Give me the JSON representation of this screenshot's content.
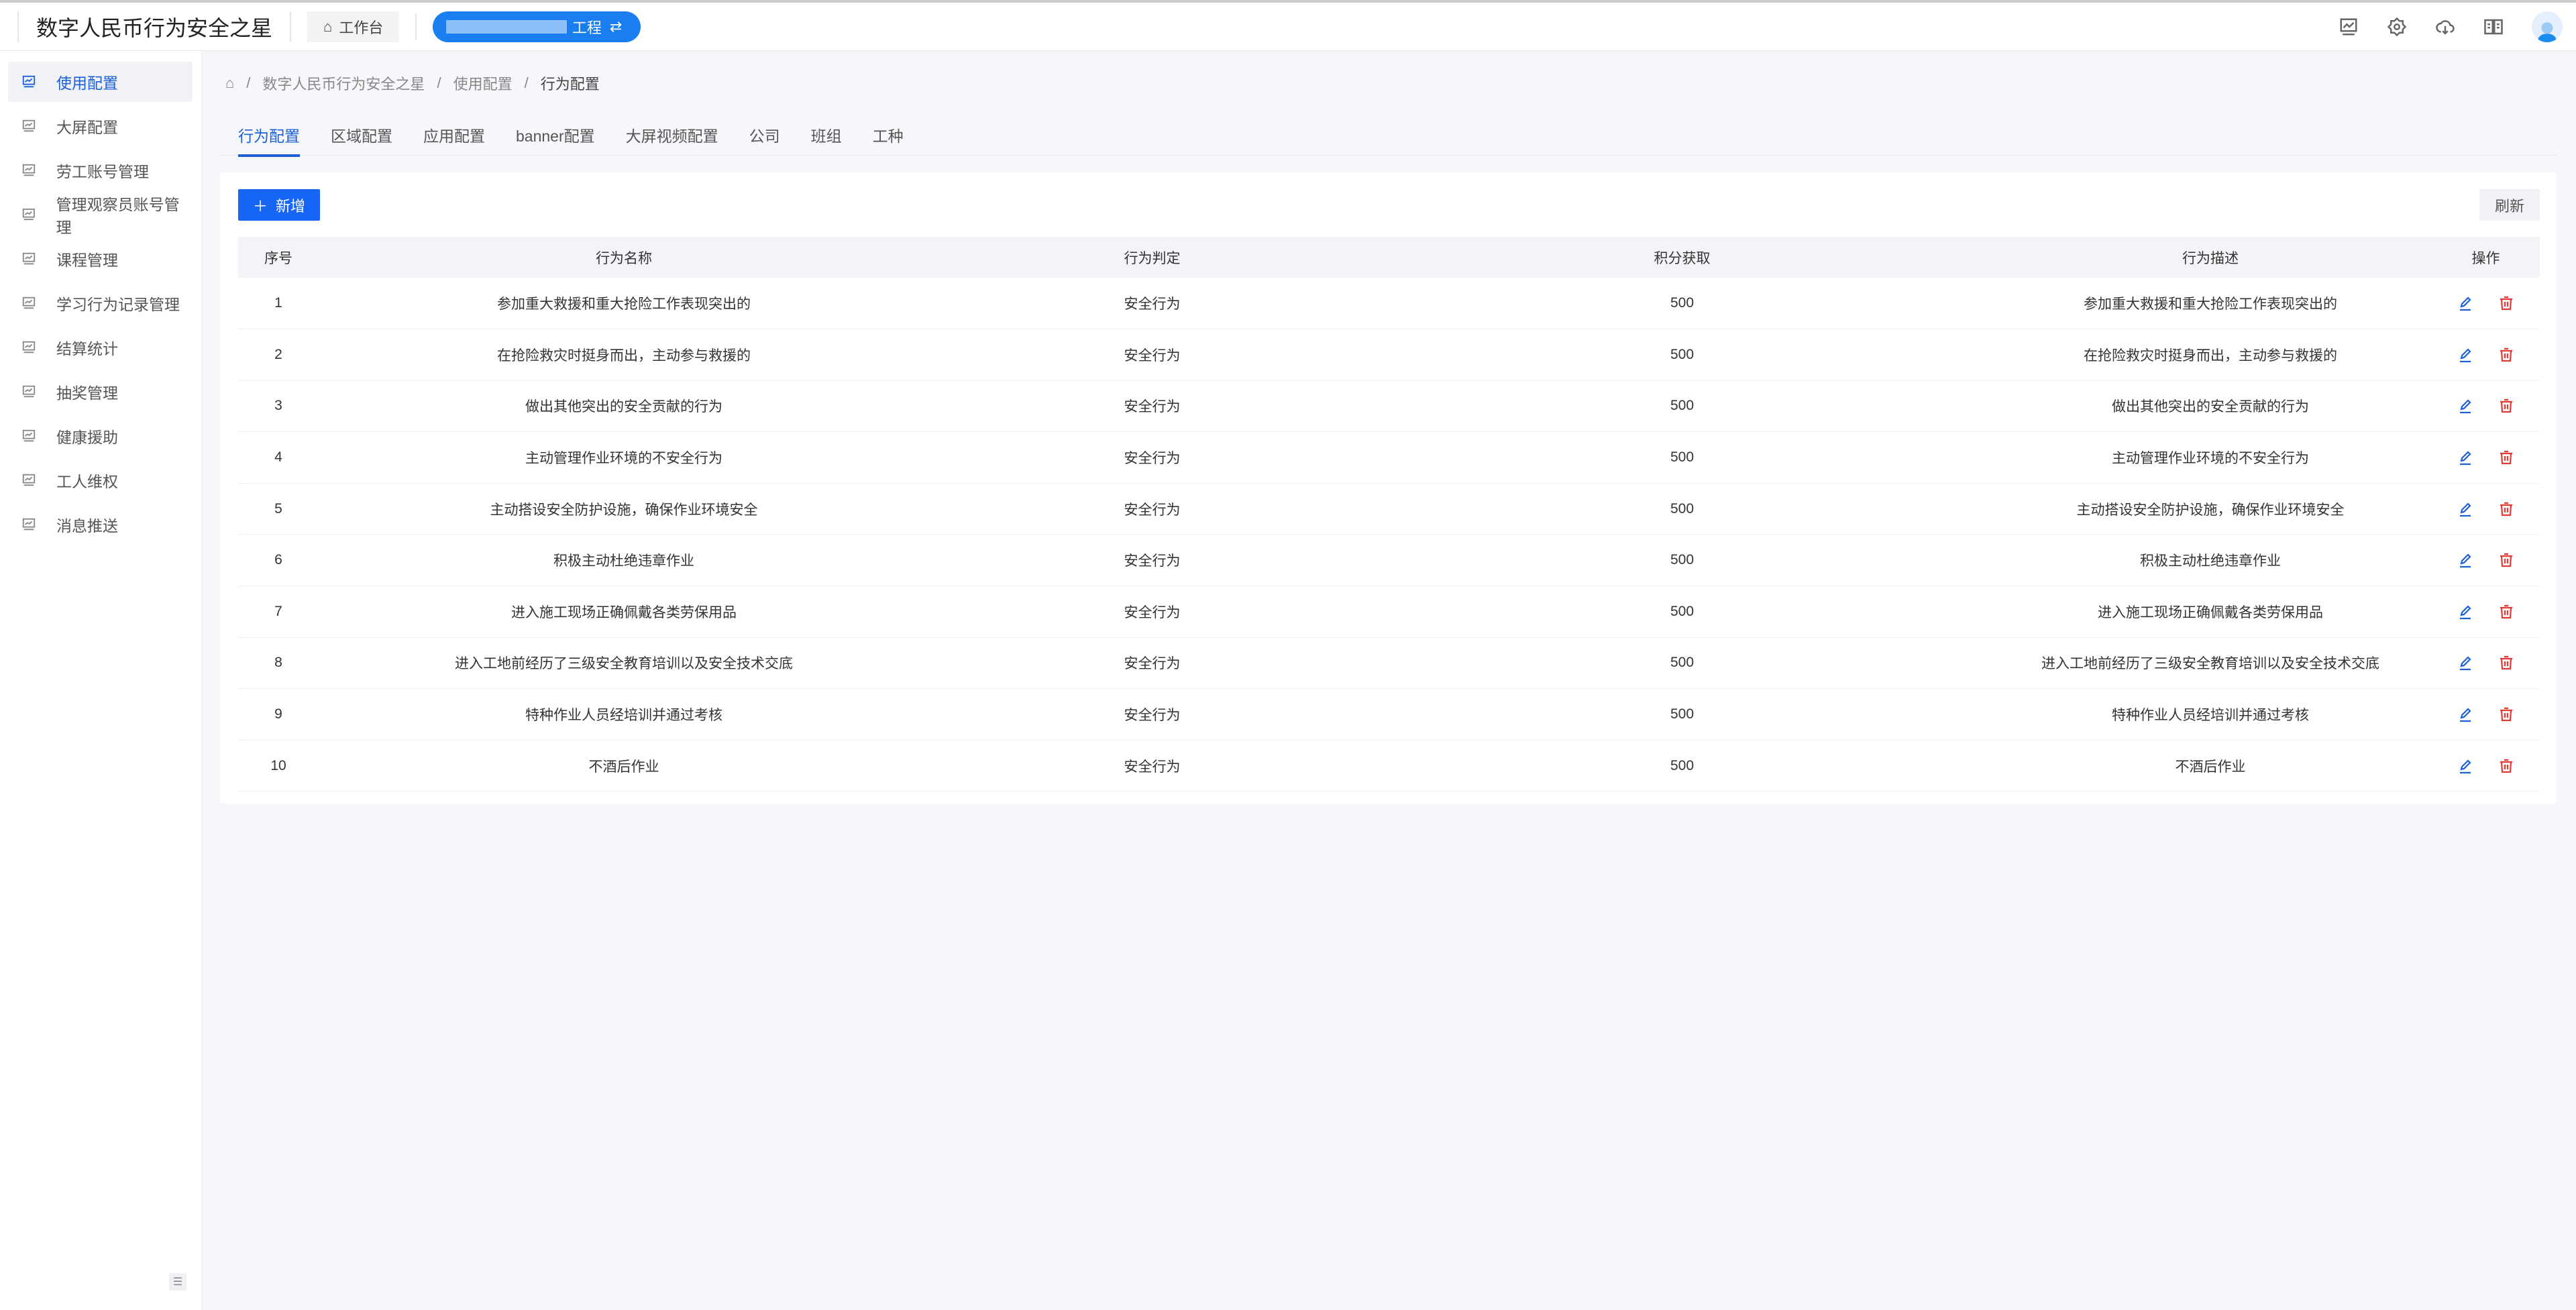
{
  "header": {
    "title": "数字人民币行为安全之星",
    "workbench": "工作台",
    "project": "工程",
    "switch_icon": "swap-icon",
    "icons": [
      "monitor-chart-icon",
      "gear-icon",
      "cloud-download-icon",
      "book-icon",
      "avatar"
    ]
  },
  "sidebar": {
    "items": [
      {
        "label": "使用配置",
        "active": true
      },
      {
        "label": "大屏配置"
      },
      {
        "label": "劳工账号管理"
      },
      {
        "label": "管理观察员账号管理"
      },
      {
        "label": "课程管理"
      },
      {
        "label": "学习行为记录管理"
      },
      {
        "label": "结算统计"
      },
      {
        "label": "抽奖管理"
      },
      {
        "label": "健康援助"
      },
      {
        "label": "工人维权"
      },
      {
        "label": "消息推送"
      }
    ]
  },
  "breadcrumb": [
    "数字人民币行为安全之星",
    "使用配置",
    "行为配置"
  ],
  "tabs": [
    "行为配置",
    "区域配置",
    "应用配置",
    "banner配置",
    "大屏视频配置",
    "公司",
    "班组",
    "工种"
  ],
  "toolbar": {
    "add": "新增",
    "refresh": "刷新"
  },
  "table": {
    "headers": [
      "序号",
      "行为名称",
      "行为判定",
      "积分获取",
      "行为描述",
      "操作"
    ],
    "rows": [
      [
        "1",
        "参加重大救援和重大抢险工作表现突出的",
        "安全行为",
        "500",
        "参加重大救援和重大抢险工作表现突出的"
      ],
      [
        "2",
        "在抢险救灾时挺身而出，主动参与救援的",
        "安全行为",
        "500",
        "在抢险救灾时挺身而出，主动参与救援的"
      ],
      [
        "3",
        "做出其他突出的安全贡献的行为",
        "安全行为",
        "500",
        "做出其他突出的安全贡献的行为"
      ],
      [
        "4",
        "主动管理作业环境的不安全行为",
        "安全行为",
        "500",
        "主动管理作业环境的不安全行为"
      ],
      [
        "5",
        "主动搭设安全防护设施，确保作业环境安全",
        "安全行为",
        "500",
        "主动搭设安全防护设施，确保作业环境安全"
      ],
      [
        "6",
        "积极主动杜绝违章作业",
        "安全行为",
        "500",
        "积极主动杜绝违章作业"
      ],
      [
        "7",
        "进入施工现场正确佩戴各类劳保用品",
        "安全行为",
        "500",
        "进入施工现场正确佩戴各类劳保用品"
      ],
      [
        "8",
        "进入工地前经历了三级安全教育培训以及安全技术交底",
        "安全行为",
        "500",
        "进入工地前经历了三级安全教育培训以及安全技术交底"
      ],
      [
        "9",
        "特种作业人员经培训并通过考核",
        "安全行为",
        "500",
        "特种作业人员经培训并通过考核"
      ],
      [
        "10",
        "不酒后作业",
        "安全行为",
        "500",
        "不酒后作业"
      ]
    ]
  },
  "colors": {
    "accent": "#1765f7",
    "danger": "#e53935"
  }
}
